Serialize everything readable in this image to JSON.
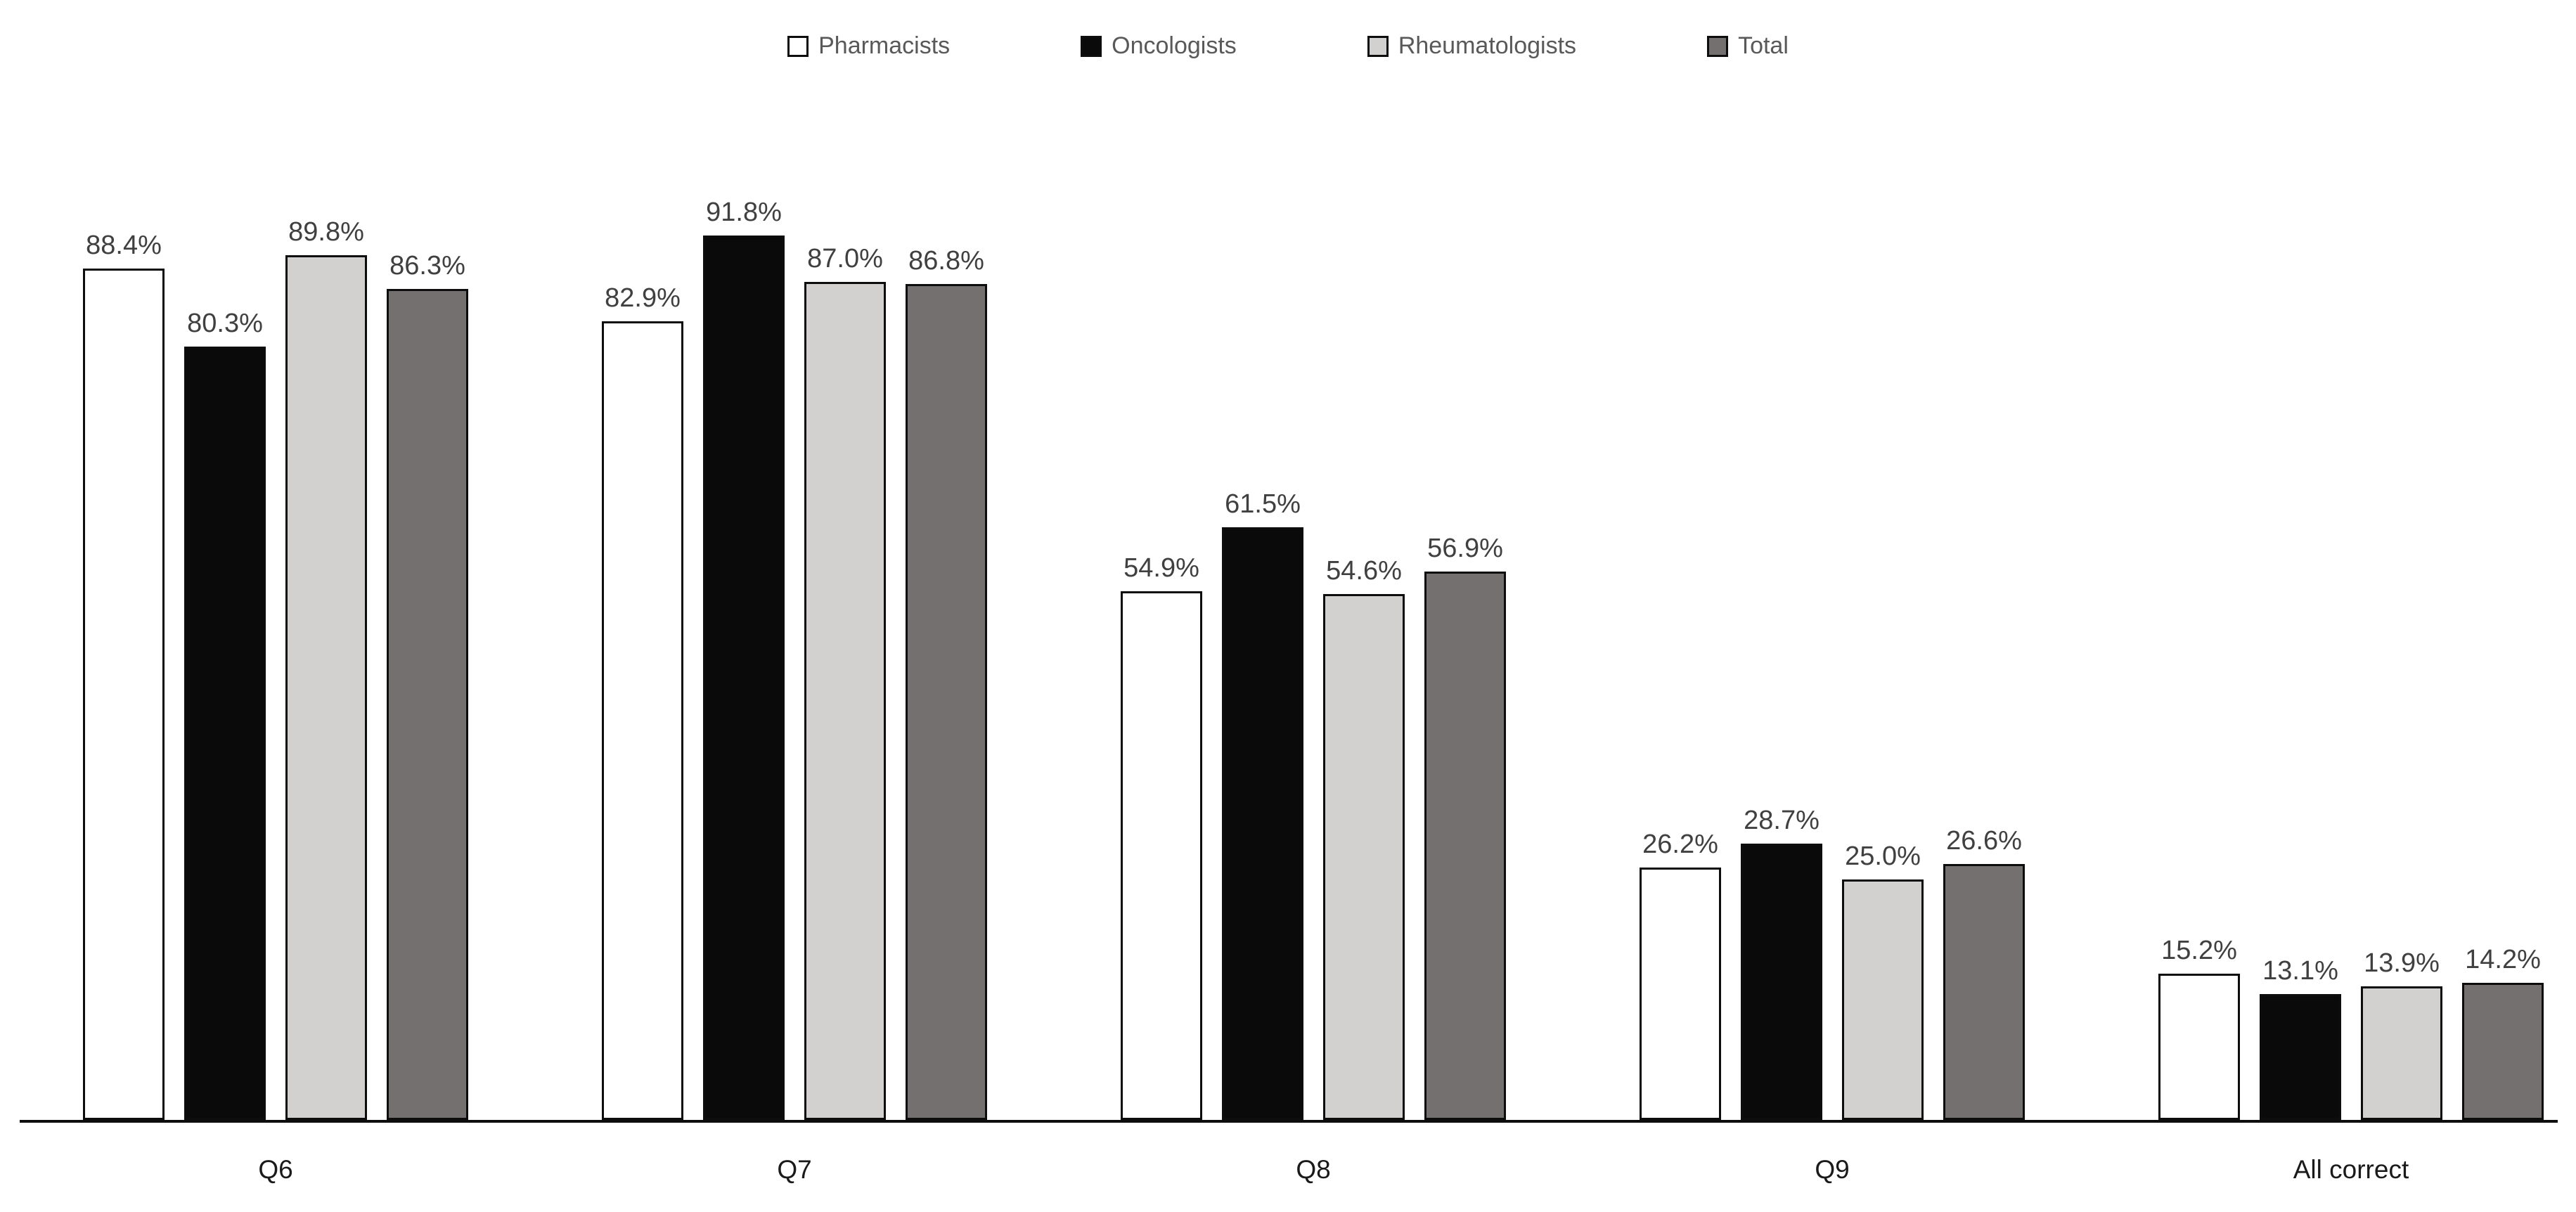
{
  "chart_data": {
    "type": "bar",
    "title": "",
    "xlabel": "",
    "ylabel": "",
    "value_suffix": "%",
    "ylim": [
      0,
      100
    ],
    "grid": false,
    "legend_position": "top-center",
    "axis_line_color": "#0d0d0d",
    "data_label_color": "#404040",
    "legend_text_color": "#595959",
    "categories": [
      "Q6",
      "Q7",
      "Q8",
      "Q9",
      "All correct"
    ],
    "series": [
      {
        "name": "Pharmacists",
        "fill": "#ffffff",
        "border": "#0d0d0d",
        "values": [
          88.4,
          82.9,
          54.9,
          26.2,
          15.2
        ]
      },
      {
        "name": "Oncologists",
        "fill": "#0a0a0a",
        "border": "#0d0d0d",
        "values": [
          80.3,
          91.8,
          61.5,
          28.7,
          13.1
        ]
      },
      {
        "name": "Rheumatologists",
        "fill": "#d3d0d0",
        "border": "#0d0d0d",
        "values": [
          89.8,
          87.0,
          54.6,
          25.0,
          13.9
        ]
      },
      {
        "name": "Total",
        "fill": "#757070",
        "border": "#0d0d0d",
        "values": [
          86.3,
          86.8,
          56.9,
          26.6,
          14.2
        ]
      }
    ]
  }
}
